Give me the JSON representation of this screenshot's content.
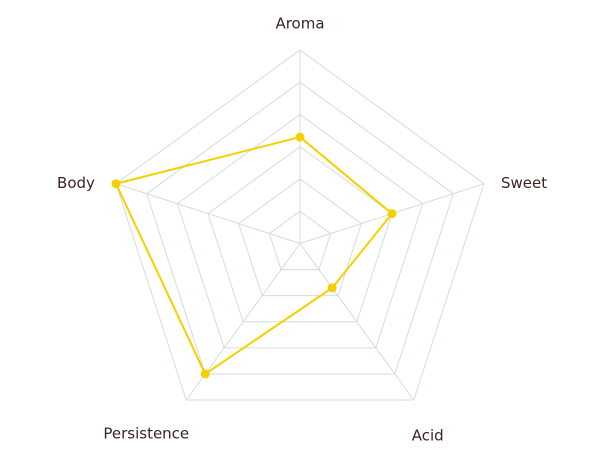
{
  "chart_data": {
    "type": "radar",
    "categories": [
      "Aroma",
      "Sweet",
      "Acid",
      "Persistence",
      "Body"
    ],
    "values": [
      3.3,
      3,
      1.7,
      5,
      6
    ],
    "color": "#f5d000",
    "rlim": [
      0,
      6
    ],
    "rticks": [
      1,
      2,
      3,
      4,
      5,
      6
    ],
    "grid": true
  }
}
